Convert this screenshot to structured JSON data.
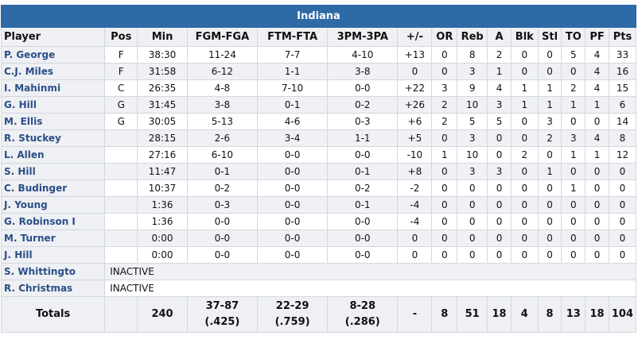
{
  "team": "Indiana",
  "columns": [
    "Player",
    "Pos",
    "Min",
    "FGM-FGA",
    "FTM-FTA",
    "3PM-3PA",
    "+/-",
    "OR",
    "Reb",
    "A",
    "Blk",
    "Stl",
    "TO",
    "PF",
    "Pts"
  ],
  "players": [
    {
      "name": "P. George",
      "pos": "F",
      "min": "38:30",
      "fg": "11-24",
      "ft": "7-7",
      "tp": "4-10",
      "pm": "+13",
      "or": "0",
      "reb": "8",
      "a": "2",
      "blk": "0",
      "stl": "0",
      "to": "5",
      "pf": "4",
      "pts": "33"
    },
    {
      "name": "C.J. Miles",
      "pos": "F",
      "min": "31:58",
      "fg": "6-12",
      "ft": "1-1",
      "tp": "3-8",
      "pm": "0",
      "or": "0",
      "reb": "3",
      "a": "1",
      "blk": "0",
      "stl": "0",
      "to": "0",
      "pf": "4",
      "pts": "16"
    },
    {
      "name": "I. Mahinmi",
      "pos": "C",
      "min": "26:35",
      "fg": "4-8",
      "ft": "7-10",
      "tp": "0-0",
      "pm": "+22",
      "or": "3",
      "reb": "9",
      "a": "4",
      "blk": "1",
      "stl": "1",
      "to": "2",
      "pf": "4",
      "pts": "15"
    },
    {
      "name": "G. Hill",
      "pos": "G",
      "min": "31:45",
      "fg": "3-8",
      "ft": "0-1",
      "tp": "0-2",
      "pm": "+26",
      "or": "2",
      "reb": "10",
      "a": "3",
      "blk": "1",
      "stl": "1",
      "to": "1",
      "pf": "1",
      "pts": "6"
    },
    {
      "name": "M. Ellis",
      "pos": "G",
      "min": "30:05",
      "fg": "5-13",
      "ft": "4-6",
      "tp": "0-3",
      "pm": "+6",
      "or": "2",
      "reb": "5",
      "a": "5",
      "blk": "0",
      "stl": "3",
      "to": "0",
      "pf": "0",
      "pts": "14"
    },
    {
      "name": "R. Stuckey",
      "pos": "",
      "min": "28:15",
      "fg": "2-6",
      "ft": "3-4",
      "tp": "1-1",
      "pm": "+5",
      "or": "0",
      "reb": "3",
      "a": "0",
      "blk": "0",
      "stl": "2",
      "to": "3",
      "pf": "4",
      "pts": "8"
    },
    {
      "name": "L. Allen",
      "pos": "",
      "min": "27:16",
      "fg": "6-10",
      "ft": "0-0",
      "tp": "0-0",
      "pm": "-10",
      "or": "1",
      "reb": "10",
      "a": "0",
      "blk": "2",
      "stl": "0",
      "to": "1",
      "pf": "1",
      "pts": "12"
    },
    {
      "name": "S. Hill",
      "pos": "",
      "min": "11:47",
      "fg": "0-1",
      "ft": "0-0",
      "tp": "0-1",
      "pm": "+8",
      "or": "0",
      "reb": "3",
      "a": "3",
      "blk": "0",
      "stl": "1",
      "to": "0",
      "pf": "0",
      "pts": "0"
    },
    {
      "name": "C. Budinger",
      "pos": "",
      "min": "10:37",
      "fg": "0-2",
      "ft": "0-0",
      "tp": "0-2",
      "pm": "-2",
      "or": "0",
      "reb": "0",
      "a": "0",
      "blk": "0",
      "stl": "0",
      "to": "1",
      "pf": "0",
      "pts": "0"
    },
    {
      "name": "J. Young",
      "pos": "",
      "min": "1:36",
      "fg": "0-3",
      "ft": "0-0",
      "tp": "0-1",
      "pm": "-4",
      "or": "0",
      "reb": "0",
      "a": "0",
      "blk": "0",
      "stl": "0",
      "to": "0",
      "pf": "0",
      "pts": "0"
    },
    {
      "name": "G. Robinson I",
      "pos": "",
      "min": "1:36",
      "fg": "0-0",
      "ft": "0-0",
      "tp": "0-0",
      "pm": "-4",
      "or": "0",
      "reb": "0",
      "a": "0",
      "blk": "0",
      "stl": "0",
      "to": "0",
      "pf": "0",
      "pts": "0"
    },
    {
      "name": "M. Turner",
      "pos": "",
      "min": "0:00",
      "fg": "0-0",
      "ft": "0-0",
      "tp": "0-0",
      "pm": "0",
      "or": "0",
      "reb": "0",
      "a": "0",
      "blk": "0",
      "stl": "0",
      "to": "0",
      "pf": "0",
      "pts": "0"
    },
    {
      "name": "J. Hill",
      "pos": "",
      "min": "0:00",
      "fg": "0-0",
      "ft": "0-0",
      "tp": "0-0",
      "pm": "0",
      "or": "0",
      "reb": "0",
      "a": "0",
      "blk": "0",
      "stl": "0",
      "to": "0",
      "pf": "0",
      "pts": "0"
    }
  ],
  "inactive": [
    {
      "name": "S. Whittingto",
      "note": "INACTIVE"
    },
    {
      "name": "R. Christmas",
      "note": "INACTIVE"
    }
  ],
  "totals": {
    "label": "Totals",
    "min": "240",
    "fg": "37-87",
    "fg_pct": "(.425)",
    "ft": "22-29",
    "ft_pct": "(.759)",
    "tp": "8-28",
    "tp_pct": "(.286)",
    "pm": "-",
    "or": "8",
    "reb": "51",
    "a": "18",
    "blk": "4",
    "stl": "8",
    "to": "13",
    "pf": "18",
    "pts": "104"
  }
}
